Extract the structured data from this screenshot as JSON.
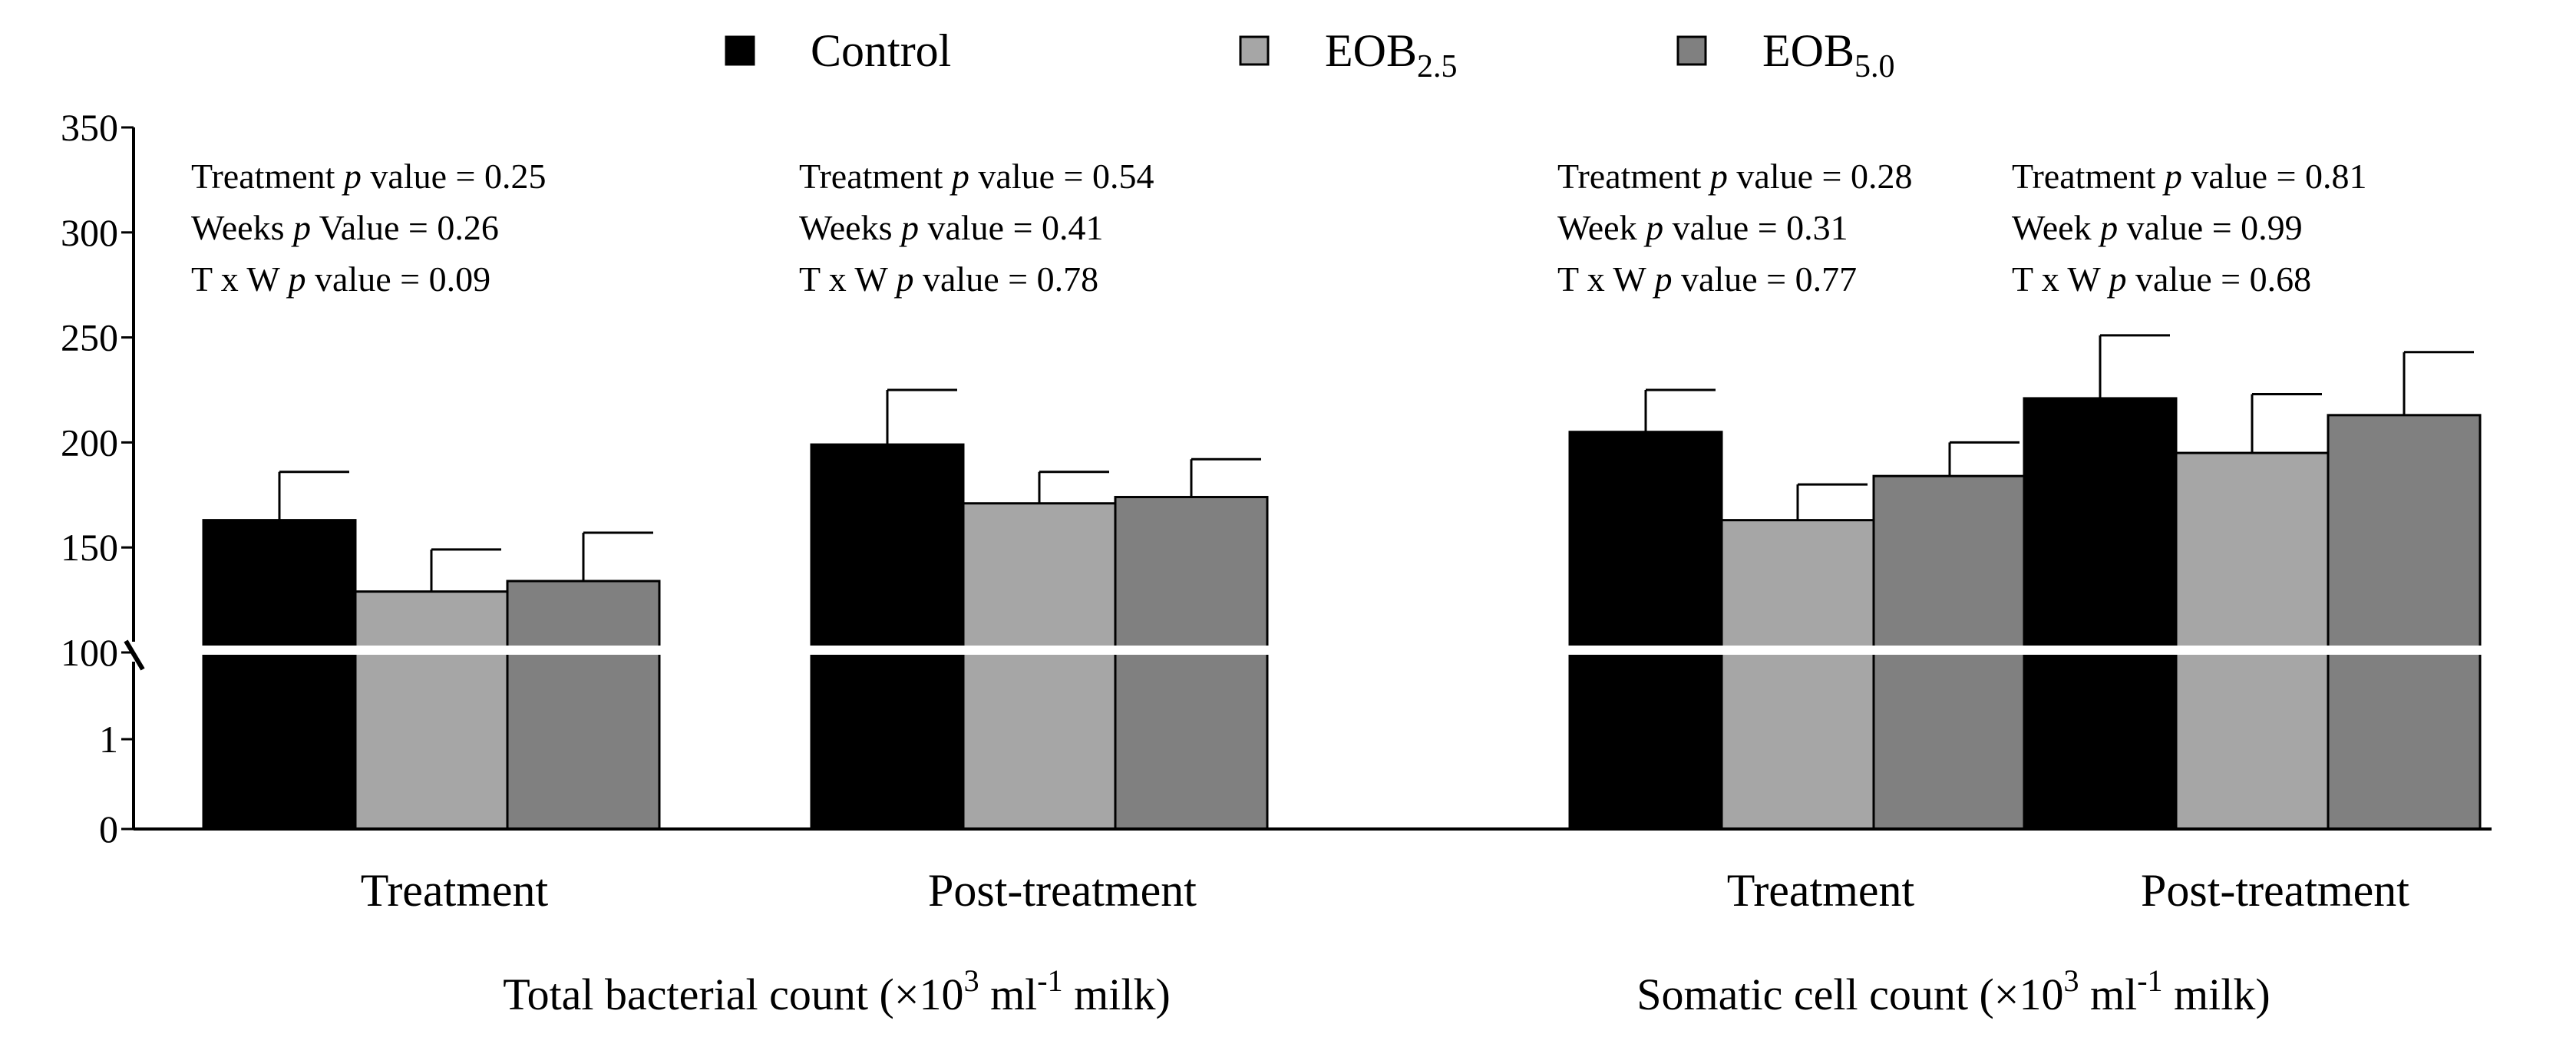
{
  "chart_data": {
    "type": "bar",
    "y_axis": {
      "broken": true,
      "segments": [
        {
          "range": [
            0,
            1
          ],
          "ticks": [
            "0",
            "1"
          ]
        },
        {
          "range": [
            100,
            350
          ],
          "ticks": [
            "100",
            "150",
            "200",
            "250",
            "300",
            "350"
          ]
        }
      ]
    },
    "legend": {
      "position": "top",
      "items": [
        {
          "label": "Control",
          "sub": "",
          "color": "#000000"
        },
        {
          "label": "EOB",
          "sub": "2.5",
          "color": "#a6a6a6"
        },
        {
          "label": "EOB",
          "sub": "5.0",
          "color": "#808080"
        }
      ]
    },
    "series_names": [
      "Control",
      "EOB2.5",
      "EOB5.0"
    ],
    "sections": [
      {
        "label_prefix": "Total bacterial count (×10",
        "label_sup": "3",
        "label_mid": " ml",
        "label_sup2": "-1",
        "label_suffix": " milk)",
        "groups": [
          {
            "label": "Treatment",
            "values": [
              163,
              129,
              134
            ],
            "errors": [
              23,
              20,
              23
            ],
            "stats": [
              {
                "pre": "Treatment ",
                "p": "p",
                "post": " value = 0.25"
              },
              {
                "pre": "Weeks ",
                "p": "p",
                "post": " Value = 0.26"
              },
              {
                "pre": "T x W ",
                "p": "p",
                "post": " value = 0.09"
              }
            ]
          },
          {
            "label": "Post-treatment",
            "values": [
              199,
              171,
              174
            ],
            "errors": [
              26,
              15,
              18
            ],
            "stats": [
              {
                "pre": "Treatment ",
                "p": "p",
                "post": " value = 0.54"
              },
              {
                "pre": "Weeks ",
                "p": "p",
                "post": " value = 0.41"
              },
              {
                "pre": "T x W ",
                "p": "p",
                "post": " value = 0.78"
              }
            ]
          }
        ]
      },
      {
        "label_prefix": "Somatic cell count (×10",
        "label_sup": "3",
        "label_mid": " ml",
        "label_sup2": "-1",
        "label_suffix": " milk)",
        "groups": [
          {
            "label": "Treatment",
            "values": [
              205,
              163,
              184
            ],
            "errors": [
              20,
              17,
              16
            ],
            "stats": [
              {
                "pre": "Treatment ",
                "p": "p",
                "post": " value = 0.28"
              },
              {
                "pre": "Week ",
                "p": "p",
                "post": " value = 0.31"
              },
              {
                "pre": "T x W ",
                "p": "p",
                "post": " value = 0.77"
              }
            ]
          },
          {
            "label": "Post-treatment",
            "values": [
              221,
              195,
              213
            ],
            "errors": [
              30,
              28,
              30
            ],
            "stats": [
              {
                "pre": "Treatment ",
                "p": "p",
                "post": " value = 0.81"
              },
              {
                "pre": "Week ",
                "p": "p",
                "post": " value = 0.99"
              },
              {
                "pre": "T x W ",
                "p": "p",
                "post": " value = 0.68"
              }
            ]
          }
        ]
      }
    ]
  }
}
